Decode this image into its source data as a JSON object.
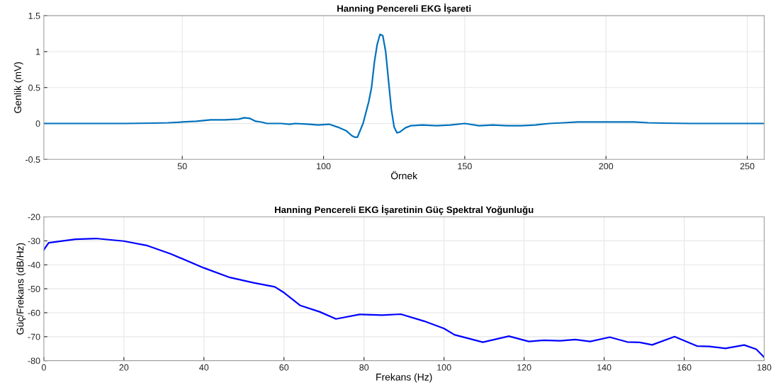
{
  "chart_data": [
    {
      "type": "line",
      "title": "Hanning Pencereli EKG İşareti",
      "xlabel": "Örnek",
      "ylabel": "Genlik (mV)",
      "xlim": [
        1,
        256
      ],
      "xticks": [
        50,
        100,
        150,
        200,
        250
      ],
      "ylim": [
        -0.5,
        1.5
      ],
      "yticks": [
        -0.5,
        0,
        0.5,
        1,
        1.5
      ],
      "grid": true,
      "legend": false,
      "series": [
        {
          "color": "#0072bd",
          "x": [
            1,
            30,
            40,
            45,
            50,
            55,
            60,
            65,
            70,
            72,
            74,
            76,
            78,
            80,
            85,
            88,
            90,
            95,
            98,
            102,
            105,
            108,
            110,
            111,
            112,
            114,
            116,
            117,
            118,
            119,
            120,
            121,
            122,
            123,
            124,
            125,
            126,
            127,
            129,
            131,
            135,
            140,
            145,
            150,
            155,
            160,
            165,
            170,
            175,
            180,
            185,
            190,
            200,
            210,
            215,
            220,
            230,
            256
          ],
          "values": [
            0,
            0,
            0.005,
            0.01,
            0.02,
            0.03,
            0.05,
            0.05,
            0.06,
            0.08,
            0.07,
            0.03,
            0.02,
            0,
            0,
            -0.01,
            0,
            -0.01,
            -0.02,
            -0.01,
            -0.05,
            -0.1,
            -0.17,
            -0.19,
            -0.19,
            0,
            0.3,
            0.5,
            0.85,
            1.1,
            1.24,
            1.22,
            1,
            0.6,
            0.2,
            -0.05,
            -0.13,
            -0.12,
            -0.06,
            -0.03,
            -0.02,
            -0.03,
            -0.02,
            0,
            -0.03,
            -0.02,
            -0.03,
            -0.03,
            -0.02,
            0,
            0.01,
            0.02,
            0.02,
            0.02,
            0.01,
            0.005,
            0,
            0
          ]
        }
      ]
    },
    {
      "type": "line",
      "title": "Hanning Pencereli EKG İşaretinin Güç Spektral Yoğunluğu",
      "xlabel": "Frekans (Hz)",
      "ylabel": "Güç/Frekans (dB/Hz)",
      "xlim": [
        0,
        180
      ],
      "xticks": [
        0,
        20,
        40,
        60,
        80,
        100,
        120,
        140,
        160,
        180
      ],
      "ylim": [
        -80,
        -20
      ],
      "yticks": [
        -80,
        -70,
        -60,
        -50,
        -40,
        -30,
        -20
      ],
      "grid": true,
      "legend": false,
      "series": [
        {
          "color": "#0000ff",
          "x": [
            0,
            1.2,
            7.9,
            13,
            20,
            25.9,
            31.8,
            40,
            46.5,
            52.4,
            57.7,
            60,
            64.1,
            68.9,
            73,
            78.9,
            84.6,
            89.2,
            95,
            100,
            102.6,
            109.7,
            116.2,
            121.2,
            125,
            129,
            132.8,
            136.5,
            141.4,
            145.8,
            148.9,
            152,
            157.6,
            163.2,
            166.3,
            170.3,
            175,
            178,
            180
          ],
          "values": [
            -33.7,
            -30.8,
            -29.3,
            -29,
            -30.1,
            -32,
            -35.5,
            -41.3,
            -45.3,
            -47.5,
            -49.2,
            -51.6,
            -57,
            -59.6,
            -62.6,
            -60.7,
            -61,
            -60.6,
            -63.5,
            -66.6,
            -69.2,
            -72.3,
            -69.8,
            -72,
            -71.5,
            -71.7,
            -71.2,
            -72,
            -70.2,
            -72.2,
            -72.4,
            -73.4,
            -70,
            -73.9,
            -74.1,
            -74.9,
            -73.5,
            -75.2,
            -78.6
          ]
        }
      ]
    }
  ]
}
